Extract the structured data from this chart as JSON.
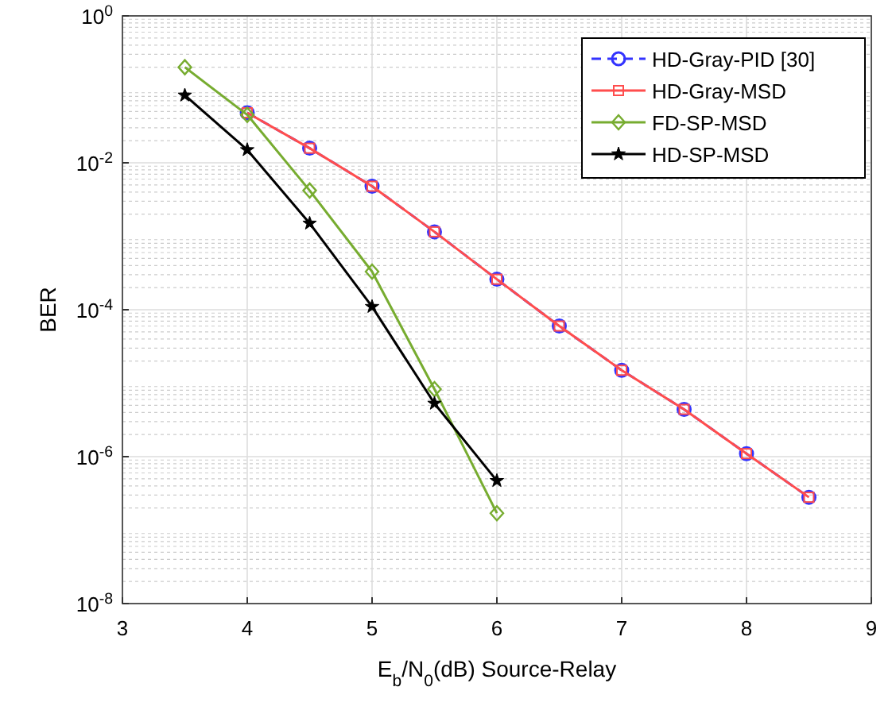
{
  "chart_data": {
    "type": "line",
    "xlabel": "E$_{b}$/N$_{0}$(dB) Source-Relay",
    "ylabel": "BER",
    "xlim": [
      3,
      9
    ],
    "xticks": [
      3,
      4,
      5,
      6,
      7,
      8,
      9
    ],
    "ylim": [
      1e-08,
      1
    ],
    "yticks": [
      {
        "value": 1e-08,
        "label": "10$^{-8}$"
      },
      {
        "value": 1e-06,
        "label": "10$^{-6}$"
      },
      {
        "value": 0.0001,
        "label": "10$^{-4}$"
      },
      {
        "value": 0.01,
        "label": "10$^{-2}$"
      },
      {
        "value": 1,
        "label": "10$^{0}$"
      }
    ],
    "log": "y",
    "grid": true,
    "legend": "top right",
    "series": [
      {
        "name": "HD-Gray-PID [30]",
        "color": "#3333ff",
        "marker": "circle",
        "line_style": "dashed",
        "x": [
          4,
          4.5,
          5,
          5.5,
          6,
          6.5,
          7,
          7.5,
          8,
          8.5
        ],
        "values": [
          0.048,
          0.0158,
          0.0048,
          0.00115,
          0.00026,
          6e-05,
          1.5e-05,
          4.4e-06,
          1.1e-06,
          2.8e-07
        ]
      },
      {
        "name": "HD-Gray-MSD",
        "color": "#ff4d4d",
        "marker": "square",
        "line_style": "solid",
        "x": [
          4,
          4.5,
          5,
          5.5,
          6,
          6.5,
          7,
          7.5,
          8,
          8.5
        ],
        "values": [
          0.048,
          0.0158,
          0.0048,
          0.00115,
          0.00026,
          6e-05,
          1.5e-05,
          4.4e-06,
          1.1e-06,
          2.8e-07
        ]
      },
      {
        "name": "FD-SP-MSD",
        "color": "#77ac30",
        "marker": "diamond",
        "line_style": "solid",
        "x": [
          3.5,
          4,
          4.5,
          5,
          5.5,
          6
        ],
        "values": [
          0.2,
          0.045,
          0.0042,
          0.00033,
          8.3e-06,
          1.7e-07
        ]
      },
      {
        "name": "HD-SP-MSD",
        "color": "#000000",
        "marker": "star",
        "line_style": "solid",
        "x": [
          3.5,
          4,
          4.5,
          5,
          5.5,
          6
        ],
        "values": [
          0.083,
          0.015,
          0.0015,
          0.00011,
          5.3e-06,
          4.7e-07
        ]
      }
    ]
  }
}
